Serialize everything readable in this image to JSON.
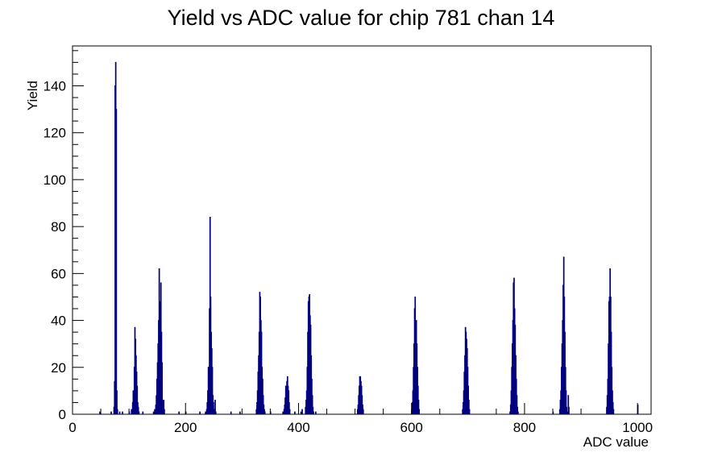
{
  "chart_data": {
    "type": "histogram",
    "title": "Yield vs ADC value for chip 781 chan 14",
    "xlabel": "ADC value",
    "ylabel": "Yield",
    "xlim": [
      0,
      1024
    ],
    "ylim": [
      0,
      157
    ],
    "xticks": [
      0,
      200,
      400,
      600,
      800,
      1000
    ],
    "yticks": [
      0,
      20,
      40,
      60,
      80,
      100,
      120,
      140
    ],
    "grid": false,
    "line_color": "#00007f",
    "bins": [
      [
        48,
        1
      ],
      [
        68,
        1
      ],
      [
        73,
        3
      ],
      [
        74,
        14
      ],
      [
        75,
        140
      ],
      [
        76,
        150
      ],
      [
        77,
        130
      ],
      [
        78,
        10
      ],
      [
        79,
        2
      ],
      [
        83,
        1
      ],
      [
        88,
        1
      ],
      [
        100,
        1
      ],
      [
        104,
        2
      ],
      [
        106,
        5
      ],
      [
        107,
        10
      ],
      [
        108,
        9
      ],
      [
        109,
        20
      ],
      [
        110,
        37
      ],
      [
        111,
        32
      ],
      [
        112,
        25
      ],
      [
        113,
        18
      ],
      [
        114,
        12
      ],
      [
        115,
        5
      ],
      [
        116,
        3
      ],
      [
        117,
        1
      ],
      [
        124,
        1
      ],
      [
        143,
        1
      ],
      [
        145,
        2
      ],
      [
        147,
        4
      ],
      [
        148,
        8
      ],
      [
        149,
        15
      ],
      [
        150,
        22
      ],
      [
        151,
        30
      ],
      [
        152,
        40
      ],
      [
        153,
        62
      ],
      [
        154,
        45
      ],
      [
        155,
        48
      ],
      [
        156,
        56
      ],
      [
        157,
        35
      ],
      [
        158,
        22
      ],
      [
        159,
        6
      ],
      [
        160,
        3
      ],
      [
        161,
        6
      ],
      [
        162,
        2
      ],
      [
        188,
        1
      ],
      [
        200,
        1
      ],
      [
        225,
        1
      ],
      [
        235,
        1
      ],
      [
        237,
        2
      ],
      [
        238,
        5
      ],
      [
        239,
        10
      ],
      [
        240,
        20
      ],
      [
        241,
        20
      ],
      [
        242,
        45
      ],
      [
        243,
        84
      ],
      [
        244,
        50
      ],
      [
        245,
        35
      ],
      [
        246,
        28
      ],
      [
        247,
        20
      ],
      [
        248,
        8
      ],
      [
        249,
        5
      ],
      [
        250,
        2
      ],
      [
        252,
        6
      ],
      [
        253,
        1
      ],
      [
        280,
        1
      ],
      [
        296,
        1
      ],
      [
        325,
        2
      ],
      [
        326,
        5
      ],
      [
        327,
        10
      ],
      [
        328,
        18
      ],
      [
        329,
        25
      ],
      [
        330,
        35
      ],
      [
        331,
        52
      ],
      [
        332,
        50
      ],
      [
        333,
        40
      ],
      [
        334,
        35
      ],
      [
        335,
        20
      ],
      [
        336,
        15
      ],
      [
        337,
        8
      ],
      [
        338,
        4
      ],
      [
        339,
        2
      ],
      [
        340,
        1
      ],
      [
        350,
        1
      ],
      [
        372,
        1
      ],
      [
        374,
        2
      ],
      [
        375,
        4
      ],
      [
        376,
        7
      ],
      [
        377,
        12
      ],
      [
        378,
        12
      ],
      [
        379,
        14
      ],
      [
        380,
        16
      ],
      [
        381,
        12
      ],
      [
        382,
        10
      ],
      [
        383,
        5
      ],
      [
        384,
        2
      ],
      [
        393,
        1
      ],
      [
        404,
        1
      ],
      [
        406,
        2
      ],
      [
        412,
        3
      ],
      [
        413,
        6
      ],
      [
        414,
        10
      ],
      [
        415,
        20
      ],
      [
        416,
        35
      ],
      [
        417,
        48
      ],
      [
        418,
        50
      ],
      [
        419,
        51
      ],
      [
        420,
        42
      ],
      [
        421,
        38
      ],
      [
        422,
        25
      ],
      [
        423,
        15
      ],
      [
        424,
        8
      ],
      [
        425,
        3
      ],
      [
        426,
        1
      ],
      [
        430,
        1
      ],
      [
        504,
        2
      ],
      [
        505,
        4
      ],
      [
        506,
        8
      ],
      [
        507,
        12
      ],
      [
        508,
        16
      ],
      [
        509,
        16
      ],
      [
        510,
        14
      ],
      [
        511,
        12
      ],
      [
        512,
        8
      ],
      [
        513,
        4
      ],
      [
        514,
        2
      ],
      [
        600,
        2
      ],
      [
        601,
        5
      ],
      [
        602,
        10
      ],
      [
        603,
        20
      ],
      [
        604,
        30
      ],
      [
        605,
        45
      ],
      [
        606,
        50
      ],
      [
        607,
        36
      ],
      [
        608,
        40
      ],
      [
        609,
        30
      ],
      [
        610,
        20
      ],
      [
        611,
        12
      ],
      [
        612,
        6
      ],
      [
        613,
        2
      ],
      [
        690,
        2
      ],
      [
        691,
        5
      ],
      [
        692,
        10
      ],
      [
        693,
        18
      ],
      [
        694,
        25
      ],
      [
        695,
        37
      ],
      [
        696,
        35
      ],
      [
        697,
        32
      ],
      [
        698,
        28
      ],
      [
        699,
        20
      ],
      [
        700,
        12
      ],
      [
        701,
        6
      ],
      [
        702,
        2
      ],
      [
        774,
        1
      ],
      [
        775,
        4
      ],
      [
        776,
        10
      ],
      [
        777,
        20
      ],
      [
        778,
        30
      ],
      [
        779,
        40
      ],
      [
        780,
        56
      ],
      [
        781,
        58
      ],
      [
        782,
        45
      ],
      [
        783,
        38
      ],
      [
        784,
        25
      ],
      [
        785,
        15
      ],
      [
        786,
        8
      ],
      [
        787,
        3
      ],
      [
        788,
        1
      ],
      [
        850,
        1
      ],
      [
        862,
        2
      ],
      [
        863,
        6
      ],
      [
        864,
        10
      ],
      [
        865,
        20
      ],
      [
        866,
        30
      ],
      [
        867,
        40
      ],
      [
        868,
        55
      ],
      [
        869,
        67
      ],
      [
        870,
        50
      ],
      [
        871,
        35
      ],
      [
        872,
        20
      ],
      [
        873,
        10
      ],
      [
        874,
        3
      ],
      [
        876,
        1
      ],
      [
        877,
        8
      ],
      [
        878,
        3
      ],
      [
        945,
        3
      ],
      [
        946,
        8
      ],
      [
        947,
        15
      ],
      [
        948,
        30
      ],
      [
        949,
        48
      ],
      [
        950,
        50
      ],
      [
        951,
        62
      ],
      [
        952,
        50
      ],
      [
        953,
        35
      ],
      [
        954,
        20
      ],
      [
        955,
        10
      ],
      [
        956,
        5
      ],
      [
        957,
        2
      ],
      [
        1000,
        4
      ]
    ]
  }
}
